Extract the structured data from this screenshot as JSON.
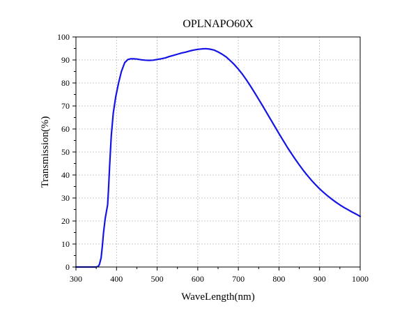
{
  "chart_data": {
    "type": "line",
    "title": "OPLNAPO60X",
    "xlabel": "WaveLength(nm)",
    "ylabel": "Transmission(%)",
    "xlim": [
      300,
      1000
    ],
    "ylim": [
      0,
      100
    ],
    "xticks": [
      300,
      400,
      500,
      600,
      700,
      800,
      900,
      1000
    ],
    "yticks": [
      0,
      10,
      20,
      30,
      40,
      50,
      60,
      70,
      80,
      90,
      100
    ],
    "x_minor_step": 50,
    "y_minor_step": 5,
    "grid": true,
    "colors": {
      "line": "#1414e6"
    },
    "series": [
      {
        "x": [
          300,
          330,
          350,
          355,
          358,
          362,
          365,
          368,
          372,
          375,
          378,
          380,
          383,
          387,
          392,
          398,
          405,
          412,
          420,
          428,
          435,
          442,
          450,
          460,
          470,
          480,
          490,
          500,
          510,
          520,
          530,
          540,
          550,
          560,
          570,
          580,
          590,
          600,
          610,
          620,
          630,
          640,
          650,
          660,
          670,
          680,
          690,
          700,
          710,
          720,
          730,
          740,
          750,
          760,
          770,
          780,
          790,
          800,
          810,
          820,
          830,
          840,
          850,
          860,
          870,
          880,
          890,
          900,
          910,
          920,
          930,
          940,
          950,
          960,
          970,
          980,
          990,
          1000
        ],
        "y": [
          0,
          0,
          0,
          0.3,
          1.2,
          4,
          9,
          15,
          21,
          24,
          27,
          33,
          44,
          57,
          67,
          74,
          80,
          85,
          88.8,
          90.2,
          90.5,
          90.5,
          90.4,
          90.1,
          89.9,
          89.8,
          89.9,
          90.2,
          90.5,
          90.9,
          91.5,
          92.0,
          92.5,
          93.0,
          93.4,
          93.9,
          94.3,
          94.6,
          94.8,
          94.9,
          94.7,
          94.3,
          93.5,
          92.5,
          91.3,
          89.7,
          88.0,
          86.0,
          83.8,
          81.3,
          78.6,
          75.8,
          72.9,
          70.0,
          67.0,
          64.0,
          61.0,
          58.0,
          55.1,
          52.2,
          49.5,
          46.9,
          44.4,
          42.0,
          39.8,
          37.7,
          35.8,
          34.0,
          32.4,
          30.9,
          29.5,
          28.2,
          27.0,
          25.9,
          24.9,
          23.9,
          23.0,
          22.0
        ]
      }
    ]
  }
}
